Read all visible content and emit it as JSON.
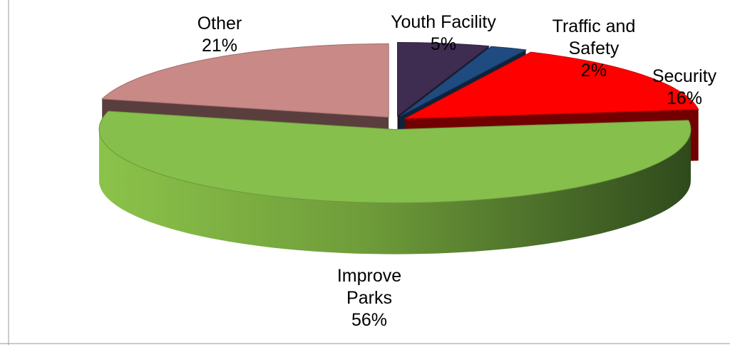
{
  "chart_data": {
    "type": "pie3d",
    "categories": [
      "Youth Facility",
      "Traffic and Safety",
      "Security",
      "Improve Parks",
      "Other"
    ],
    "values": [
      5,
      2,
      16,
      56,
      21
    ],
    "value_labels": [
      "5%",
      "2%",
      "16%",
      "56%",
      "21%"
    ],
    "colors": [
      "#3e2d50",
      "#1f4b80",
      "#ff0000",
      "#86bf4c",
      "#c88987"
    ]
  }
}
